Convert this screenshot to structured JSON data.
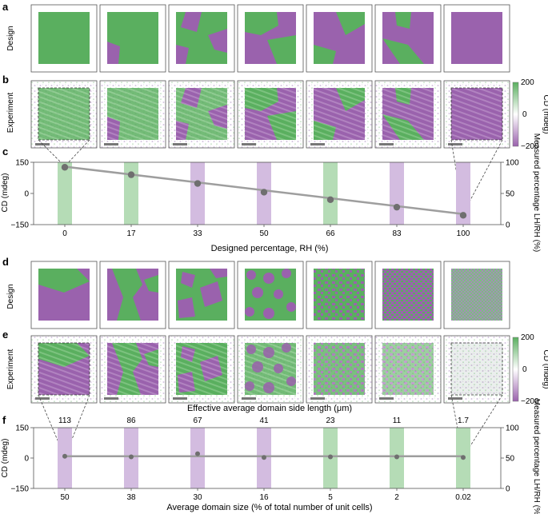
{
  "panel_labels": {
    "a": "a",
    "b": "b",
    "c": "c",
    "d": "d",
    "e": "e",
    "f": "f"
  },
  "row_labels": {
    "a": "Design",
    "b": "Experiment",
    "d": "Design",
    "e": "Experiment"
  },
  "colorbar": {
    "label": "CD (mdeg)",
    "ticks": [
      "200",
      "0",
      "−200"
    ],
    "colors": {
      "positive": "#5aaf5f",
      "zero": "#ffffff",
      "negative": "#9a62ad"
    }
  },
  "colors": {
    "green": "#5aaf5f",
    "purple": "#9a62ad",
    "green_bar": "#b5dcb6",
    "purple_bar": "#d3bce0",
    "line": "#9e9e9e",
    "marker": "#6f6f6f"
  },
  "e_caption": "Effective average domain side length (μm)",
  "chart_data": [
    {
      "type": "line",
      "panel": "c",
      "categories": [
        "0",
        "17",
        "33",
        "50",
        "66",
        "83",
        "100"
      ],
      "xlabel": "Designed percentage, RH (%)",
      "ylabel_left": "CD (mdeg)",
      "ylabel_right": "Measured percentage LH/RH (%)",
      "left_ticks": [
        "150",
        "0",
        "−150"
      ],
      "right_ticks": [
        "100",
        "50",
        "0"
      ],
      "ylim_right": [
        0,
        100
      ],
      "bar_colors": [
        "green",
        "green",
        "purple",
        "purple",
        "green",
        "purple",
        "purple"
      ],
      "series": [
        {
          "values": [
            92,
            80,
            66,
            52,
            40,
            28,
            15
          ]
        }
      ],
      "fit_line": [
        93,
        17
      ]
    },
    {
      "type": "line",
      "panel": "f",
      "categories": [
        "50",
        "38",
        "30",
        "16",
        "5",
        "2",
        "0.02"
      ],
      "top_labels": [
        "113",
        "86",
        "67",
        "41",
        "23",
        "11",
        "1.7"
      ],
      "xlabel": "Average domain size (% of total number of unit cells)",
      "ylabel_left": "CD (mdeg)",
      "ylabel_right": "Measured percentage LH/RH (%)",
      "left_ticks": [
        "150",
        "0",
        "−150"
      ],
      "right_ticks": [
        "100",
        "50",
        "0"
      ],
      "ylim_right": [
        0,
        100
      ],
      "bar_colors": [
        "purple",
        "purple",
        "purple",
        "purple",
        "green",
        "green",
        "green"
      ],
      "series": [
        {
          "values": [
            53,
            52,
            57,
            51,
            52,
            52,
            51
          ]
        }
      ],
      "fit_line": [
        53,
        53
      ]
    }
  ]
}
